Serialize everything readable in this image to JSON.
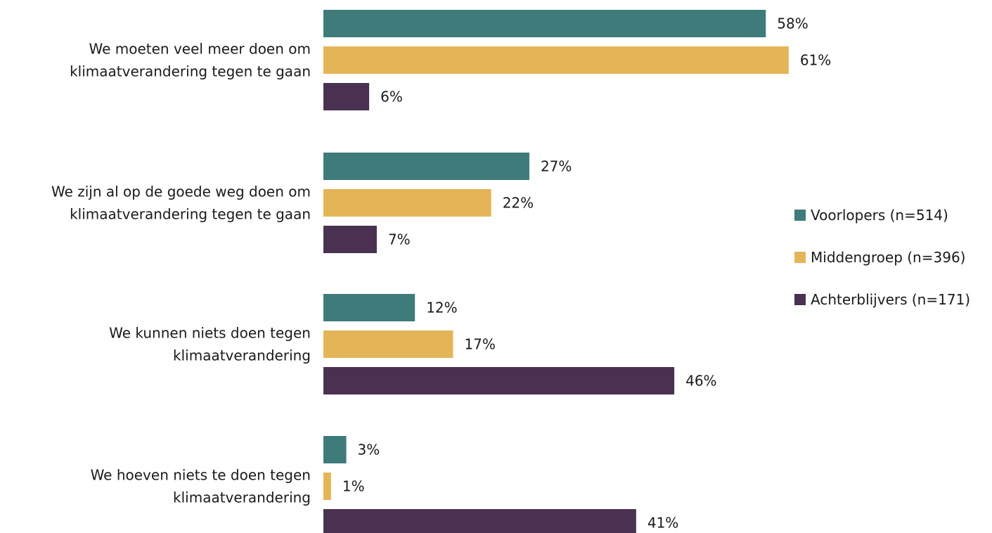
{
  "chart_data": {
    "type": "bar",
    "orientation": "horizontal",
    "categories": [
      [
        "We moeten veel meer doen om",
        "klimaatverandering tegen te gaan"
      ],
      [
        "We zijn al op de goede weg doen om",
        "klimaatverandering tegen te gaan"
      ],
      [
        "We kunnen niets doen tegen",
        "klimaatverandering"
      ],
      [
        "We hoeven niets te doen tegen",
        "klimaatverandering"
      ]
    ],
    "series": [
      {
        "name": "Voorlopers (n=514)",
        "color": "#3f7b7a",
        "values": [
          58,
          27,
          12,
          3
        ]
      },
      {
        "name": "Middengroep (n=396)",
        "color": "#e4b557",
        "values": [
          61,
          22,
          17,
          1
        ]
      },
      {
        "name": "Achterblijvers (n=171)",
        "color": "#4a3152",
        "values": [
          6,
          7,
          46,
          41
        ]
      }
    ],
    "value_suffix": "%",
    "title": "",
    "xlabel": "",
    "ylabel": "",
    "xlim": [
      0,
      100
    ],
    "grid": false,
    "legend": "right"
  }
}
